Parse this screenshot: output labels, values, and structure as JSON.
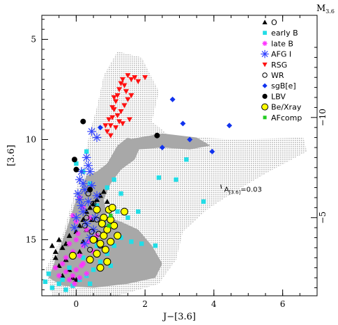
{
  "chart_data": {
    "type": "scatter",
    "title": "",
    "xlabel": "J−[3.6]",
    "ylabel": "[3.6]",
    "right_axis_label": "M_{3.6}",
    "xlim": [
      -1.0,
      7.0
    ],
    "ylim": [
      17.8,
      3.8
    ],
    "x_ticks": [
      0,
      2,
      4,
      6
    ],
    "x_tick_labels": [
      "0",
      "2",
      "4",
      "6"
    ],
    "y_ticks": [
      5,
      10,
      15
    ],
    "y_tick_labels": [
      "5",
      "10",
      "15"
    ],
    "right_ticks": [
      -10,
      -5
    ],
    "right_tick_labels": [
      "−10",
      "−5"
    ],
    "right_axis_offset": 18.9,
    "grid": false,
    "legend_position": "top-right",
    "annotation": {
      "text": "A_{[3.6]}=0.03",
      "x": 4.3,
      "y": 12.6
    },
    "series": [
      {
        "name": "O",
        "marker": "triangle",
        "color": "#000000",
        "points": [
          [
            -0.7,
            15.3
          ],
          [
            -0.6,
            15.6
          ],
          [
            -0.5,
            15.0
          ],
          [
            -0.4,
            15.4
          ],
          [
            -0.3,
            15.2
          ],
          [
            -0.2,
            14.8
          ],
          [
            -0.3,
            16.0
          ],
          [
            -0.2,
            16.5
          ],
          [
            -0.1,
            15.8
          ],
          [
            0.0,
            14.6
          ],
          [
            0.1,
            14.3
          ],
          [
            0.2,
            14.0
          ],
          [
            0.3,
            13.6
          ],
          [
            0.4,
            13.4
          ],
          [
            0.5,
            13.2
          ],
          [
            0.6,
            13.0
          ],
          [
            0.7,
            12.8
          ],
          [
            0.8,
            12.6
          ],
          [
            0.9,
            13.1
          ],
          [
            0.2,
            15.1
          ],
          [
            0.1,
            15.6
          ],
          [
            -0.4,
            16.8
          ],
          [
            -0.5,
            16.3
          ],
          [
            0.0,
            17.0
          ],
          [
            -0.1,
            16.9
          ],
          [
            0.3,
            14.5
          ],
          [
            0.45,
            14.0
          ],
          [
            -0.6,
            15.9
          ]
        ]
      },
      {
        "name": "early B",
        "marker": "square",
        "color": "#22dde6",
        "points": [
          [
            -0.9,
            17.1
          ],
          [
            -0.8,
            16.7
          ],
          [
            -0.7,
            17.4
          ],
          [
            -0.5,
            17.2
          ],
          [
            -0.3,
            17.5
          ],
          [
            -0.1,
            17.3
          ],
          [
            0.1,
            17.0
          ],
          [
            0.3,
            16.8
          ],
          [
            0.5,
            16.5
          ],
          [
            0.7,
            16.1
          ],
          [
            0.9,
            15.7
          ],
          [
            1.1,
            15.3
          ],
          [
            1.3,
            14.9
          ],
          [
            1.6,
            15.1
          ],
          [
            1.9,
            15.2
          ],
          [
            2.3,
            15.3
          ],
          [
            0.8,
            14.2
          ],
          [
            1.0,
            14.0
          ],
          [
            1.2,
            13.6
          ],
          [
            0.6,
            13.3
          ],
          [
            0.9,
            12.4
          ],
          [
            1.1,
            12.0
          ],
          [
            1.3,
            12.7
          ],
          [
            0.4,
            12.2
          ],
          [
            0.2,
            11.6
          ],
          [
            0.0,
            11.2
          ],
          [
            3.2,
            11.0
          ],
          [
            2.9,
            12.0
          ],
          [
            2.4,
            11.9
          ],
          [
            3.7,
            13.1
          ],
          [
            1.8,
            13.6
          ],
          [
            0.6,
            15.3
          ],
          [
            0.2,
            15.9
          ],
          [
            -0.4,
            17.0
          ],
          [
            -0.2,
            16.4
          ],
          [
            1.0,
            16.3
          ],
          [
            0.4,
            17.2
          ],
          [
            1.5,
            13.9
          ],
          [
            0.3,
            10.6
          ]
        ]
      },
      {
        "name": "late B",
        "marker": "star",
        "color": "#ff33ff",
        "points": [
          [
            -0.6,
            16.4
          ],
          [
            -0.5,
            16.8
          ],
          [
            -0.4,
            16.2
          ],
          [
            -0.3,
            16.6
          ],
          [
            -0.2,
            17.0
          ],
          [
            -0.1,
            16.8
          ],
          [
            0.0,
            16.5
          ],
          [
            0.1,
            16.9
          ],
          [
            0.2,
            16.2
          ],
          [
            0.3,
            16.7
          ],
          [
            -0.3,
            15.9
          ],
          [
            -0.1,
            15.6
          ],
          [
            0.1,
            15.8
          ],
          [
            0.4,
            16.0
          ],
          [
            0.5,
            15.6
          ],
          [
            -0.2,
            15.2
          ],
          [
            0.0,
            15.0
          ],
          [
            0.2,
            15.3
          ],
          [
            0.6,
            14.8
          ],
          [
            0.3,
            14.5
          ],
          [
            0.0,
            14.1
          ],
          [
            -0.1,
            13.8
          ],
          [
            0.2,
            13.4
          ],
          [
            0.1,
            12.9
          ],
          [
            0.4,
            13.9
          ],
          [
            0.15,
            16.3
          ],
          [
            -0.05,
            17.2
          ],
          [
            0.35,
            15.1
          ],
          [
            0.05,
            14.7
          ]
        ]
      },
      {
        "name": "AFG I",
        "marker": "asterisk",
        "color": "#3344ff",
        "points": [
          [
            0.45,
            9.6
          ],
          [
            0.6,
            9.9
          ],
          [
            0.3,
            10.9
          ],
          [
            0.35,
            11.3
          ],
          [
            0.4,
            11.6
          ],
          [
            0.1,
            12.0
          ],
          [
            0.2,
            12.2
          ],
          [
            0.25,
            12.5
          ],
          [
            0.1,
            13.0
          ],
          [
            0.15,
            13.3
          ],
          [
            0.2,
            13.6
          ],
          [
            0.0,
            13.9
          ],
          [
            0.3,
            14.2
          ],
          [
            0.5,
            14.5
          ],
          [
            0.4,
            14.9
          ],
          [
            0.05,
            12.7
          ],
          [
            0.6,
            12.8
          ],
          [
            0.35,
            13.1
          ],
          [
            -0.05,
            14.4
          ],
          [
            0.25,
            15.2
          ],
          [
            0.55,
            13.9
          ],
          [
            0.15,
            11.6
          ],
          [
            0.45,
            12.3
          ]
        ]
      },
      {
        "name": "RSG",
        "marker": "triangle-down",
        "color": "#ff1111",
        "points": [
          [
            0.9,
            9.6
          ],
          [
            1.0,
            9.3
          ],
          [
            1.05,
            8.9
          ],
          [
            1.1,
            8.5
          ],
          [
            1.15,
            8.1
          ],
          [
            1.2,
            7.8
          ],
          [
            1.25,
            7.5
          ],
          [
            1.3,
            7.2
          ],
          [
            1.35,
            7.0
          ],
          [
            1.4,
            7.3
          ],
          [
            1.5,
            6.8
          ],
          [
            1.6,
            7.0
          ],
          [
            1.7,
            6.9
          ],
          [
            1.8,
            7.1
          ],
          [
            2.0,
            6.9
          ],
          [
            1.3,
            8.6
          ],
          [
            1.4,
            8.3
          ],
          [
            1.5,
            8.0
          ],
          [
            1.15,
            9.4
          ],
          [
            1.25,
            9.1
          ],
          [
            0.95,
            9.0
          ],
          [
            1.1,
            7.9
          ],
          [
            1.2,
            8.8
          ],
          [
            1.45,
            7.6
          ],
          [
            1.6,
            7.8
          ],
          [
            1.05,
            8.4
          ],
          [
            1.35,
            9.2
          ],
          [
            0.85,
            9.3
          ],
          [
            1.55,
            9.0
          ],
          [
            1.0,
            9.8
          ]
        ]
      },
      {
        "name": "WR",
        "marker": "circle-open",
        "color": "#000000",
        "points": [
          [
            0.5,
            13.2
          ],
          [
            0.3,
            13.9
          ],
          [
            0.45,
            14.6
          ],
          [
            0.6,
            14.0
          ],
          [
            0.55,
            15.0
          ],
          [
            0.4,
            15.5
          ],
          [
            0.7,
            15.3
          ],
          [
            0.35,
            12.7
          ],
          [
            0.65,
            14.7
          ],
          [
            0.25,
            14.3
          ]
        ]
      },
      {
        "name": "sgB[e]",
        "marker": "diamond",
        "color": "#1133ee",
        "points": [
          [
            0.7,
            9.4
          ],
          [
            2.8,
            8.0
          ],
          [
            3.1,
            9.2
          ],
          [
            3.3,
            10.0
          ],
          [
            3.95,
            10.6
          ],
          [
            4.45,
            9.3
          ],
          [
            2.5,
            10.4
          ]
        ]
      },
      {
        "name": "LBV",
        "marker": "circle",
        "color": "#000000",
        "points": [
          [
            0.2,
            9.1
          ],
          [
            -0.05,
            11.0
          ],
          [
            0.0,
            11.5
          ],
          [
            2.35,
            9.8
          ],
          [
            0.4,
            12.5
          ]
        ]
      },
      {
        "name": "Be/Xray",
        "marker": "circle-yellow",
        "color": "#ffff00",
        "points": [
          [
            0.6,
            13.5
          ],
          [
            0.8,
            13.9
          ],
          [
            0.95,
            13.5
          ],
          [
            1.05,
            13.4
          ],
          [
            1.4,
            13.6
          ],
          [
            0.9,
            14.5
          ],
          [
            1.0,
            14.0
          ],
          [
            1.1,
            14.3
          ],
          [
            0.8,
            14.8
          ],
          [
            0.7,
            15.2
          ],
          [
            0.85,
            15.5
          ],
          [
            0.6,
            15.7
          ],
          [
            0.9,
            16.1
          ],
          [
            0.7,
            16.4
          ],
          [
            0.5,
            15.0
          ],
          [
            1.0,
            15.1
          ],
          [
            0.75,
            14.2
          ],
          [
            -0.1,
            15.8
          ],
          [
            0.4,
            16.0
          ],
          [
            1.2,
            14.8
          ]
        ]
      },
      {
        "name": "AFcomp",
        "marker": "square-small",
        "color": "#22cc22",
        "points": [
          [
            0.95,
            14.3
          ],
          [
            1.0,
            13.8
          ]
        ]
      }
    ],
    "cloud_shapes": [
      [
        [
          -0.7,
          17.8
        ],
        [
          -0.9,
          16.5
        ],
        [
          -0.4,
          14.8
        ],
        [
          -0.1,
          13.0
        ],
        [
          0.2,
          11.2
        ],
        [
          0.4,
          9.6
        ],
        [
          0.6,
          8.4
        ],
        [
          0.8,
          6.8
        ],
        [
          1.2,
          5.6
        ],
        [
          1.9,
          5.9
        ],
        [
          2.4,
          7.6
        ],
        [
          2.2,
          9.1
        ],
        [
          2.7,
          9.8
        ],
        [
          4.6,
          10.0
        ],
        [
          6.6,
          9.9
        ],
        [
          6.7,
          10.6
        ],
        [
          5.6,
          11.6
        ],
        [
          4.6,
          12.6
        ],
        [
          3.8,
          13.5
        ],
        [
          3.1,
          14.6
        ],
        [
          2.9,
          16.0
        ],
        [
          2.4,
          17.2
        ],
        [
          1.2,
          17.8
        ]
      ]
    ],
    "core_shapes": [
      [
        [
          -0.8,
          16.9
        ],
        [
          -0.3,
          14.6
        ],
        [
          0.0,
          13.0
        ],
        [
          0.3,
          11.8
        ],
        [
          0.6,
          11.6
        ],
        [
          0.9,
          11.2
        ],
        [
          1.2,
          10.3
        ],
        [
          1.5,
          9.9
        ],
        [
          1.9,
          10.2
        ],
        [
          1.7,
          11.0
        ],
        [
          1.3,
          11.5
        ],
        [
          1.0,
          12.2
        ],
        [
          0.8,
          13.0
        ],
        [
          0.9,
          13.9
        ],
        [
          1.3,
          14.1
        ],
        [
          1.8,
          14.5
        ],
        [
          2.2,
          15.3
        ],
        [
          2.5,
          16.2
        ],
        [
          2.3,
          16.9
        ],
        [
          1.5,
          17.2
        ],
        [
          0.5,
          17.4
        ],
        [
          -0.4,
          17.3
        ]
      ],
      [
        [
          1.5,
          10.0
        ],
        [
          2.5,
          9.7
        ],
        [
          3.5,
          9.9
        ],
        [
          3.9,
          10.3
        ],
        [
          3.3,
          10.5
        ],
        [
          2.5,
          10.4
        ],
        [
          1.8,
          10.5
        ]
      ]
    ]
  }
}
